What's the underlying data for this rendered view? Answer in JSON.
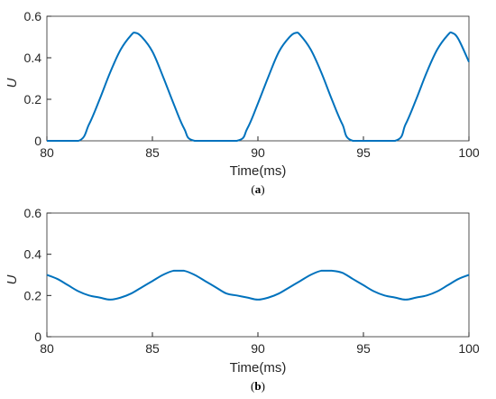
{
  "chart_data": [
    {
      "type": "line",
      "panel_label": "a",
      "xlabel": "Time(ms)",
      "ylabel": "U",
      "xlim": [
        80,
        100
      ],
      "ylim": [
        0,
        0.6
      ],
      "xticks": [
        80,
        85,
        90,
        95,
        100
      ],
      "yticks": [
        0,
        0.2,
        0.4,
        0.6
      ],
      "xtick_labels": [
        "80",
        "85",
        "90",
        "95",
        "100"
      ],
      "ytick_labels": [
        "0",
        "0.2",
        "0.4",
        "0.6"
      ],
      "grid": false,
      "series": [
        {
          "color": "#0072BD",
          "x": [
            80,
            81.5,
            82.0,
            82.5,
            83.0,
            83.5,
            84.0,
            84.2,
            84.5,
            85.0,
            85.5,
            86.0,
            86.5,
            87.0,
            89.0,
            89.5,
            90.0,
            90.5,
            91.0,
            91.5,
            91.8,
            92.0,
            92.5,
            93.0,
            93.5,
            94.0,
            94.5,
            96.5,
            97.0,
            97.5,
            98.0,
            98.5,
            99.0,
            99.2,
            99.5,
            100
          ],
          "y": [
            0,
            0,
            0.08,
            0.2,
            0.33,
            0.44,
            0.51,
            0.52,
            0.5,
            0.43,
            0.31,
            0.18,
            0.06,
            0,
            0,
            0.06,
            0.18,
            0.31,
            0.43,
            0.5,
            0.52,
            0.51,
            0.44,
            0.33,
            0.2,
            0.08,
            0,
            0,
            0.08,
            0.2,
            0.33,
            0.44,
            0.51,
            0.52,
            0.49,
            0.38
          ]
        }
      ]
    },
    {
      "type": "line",
      "panel_label": "b",
      "xlabel": "Time(ms)",
      "ylabel": "U",
      "xlim": [
        80,
        100
      ],
      "ylim": [
        0,
        0.6
      ],
      "xticks": [
        80,
        85,
        90,
        95,
        100
      ],
      "yticks": [
        0,
        0.2,
        0.4,
        0.6
      ],
      "xtick_labels": [
        "80",
        "85",
        "90",
        "95",
        "100"
      ],
      "ytick_labels": [
        "0",
        "0.2",
        "0.4",
        "0.6"
      ],
      "grid": false,
      "series": [
        {
          "color": "#0072BD",
          "x": [
            80,
            80.5,
            81.0,
            81.5,
            82.0,
            82.5,
            83.0,
            83.5,
            84.0,
            84.5,
            85.0,
            85.5,
            86.0,
            86.5,
            87.0,
            87.5,
            88.0,
            88.5,
            89.0,
            89.5,
            90.0,
            90.5,
            91.0,
            91.5,
            92.0,
            92.5,
            93.0,
            93.5,
            94.0,
            94.5,
            95.0,
            95.5,
            96.0,
            96.5,
            97.0,
            97.5,
            98.0,
            98.5,
            99.0,
            99.5,
            100
          ],
          "y": [
            0.3,
            0.28,
            0.25,
            0.22,
            0.2,
            0.19,
            0.18,
            0.19,
            0.21,
            0.24,
            0.27,
            0.3,
            0.32,
            0.32,
            0.3,
            0.27,
            0.24,
            0.21,
            0.2,
            0.19,
            0.18,
            0.19,
            0.21,
            0.24,
            0.27,
            0.3,
            0.32,
            0.32,
            0.31,
            0.28,
            0.25,
            0.22,
            0.2,
            0.19,
            0.18,
            0.19,
            0.2,
            0.22,
            0.25,
            0.28,
            0.3
          ]
        }
      ]
    }
  ]
}
